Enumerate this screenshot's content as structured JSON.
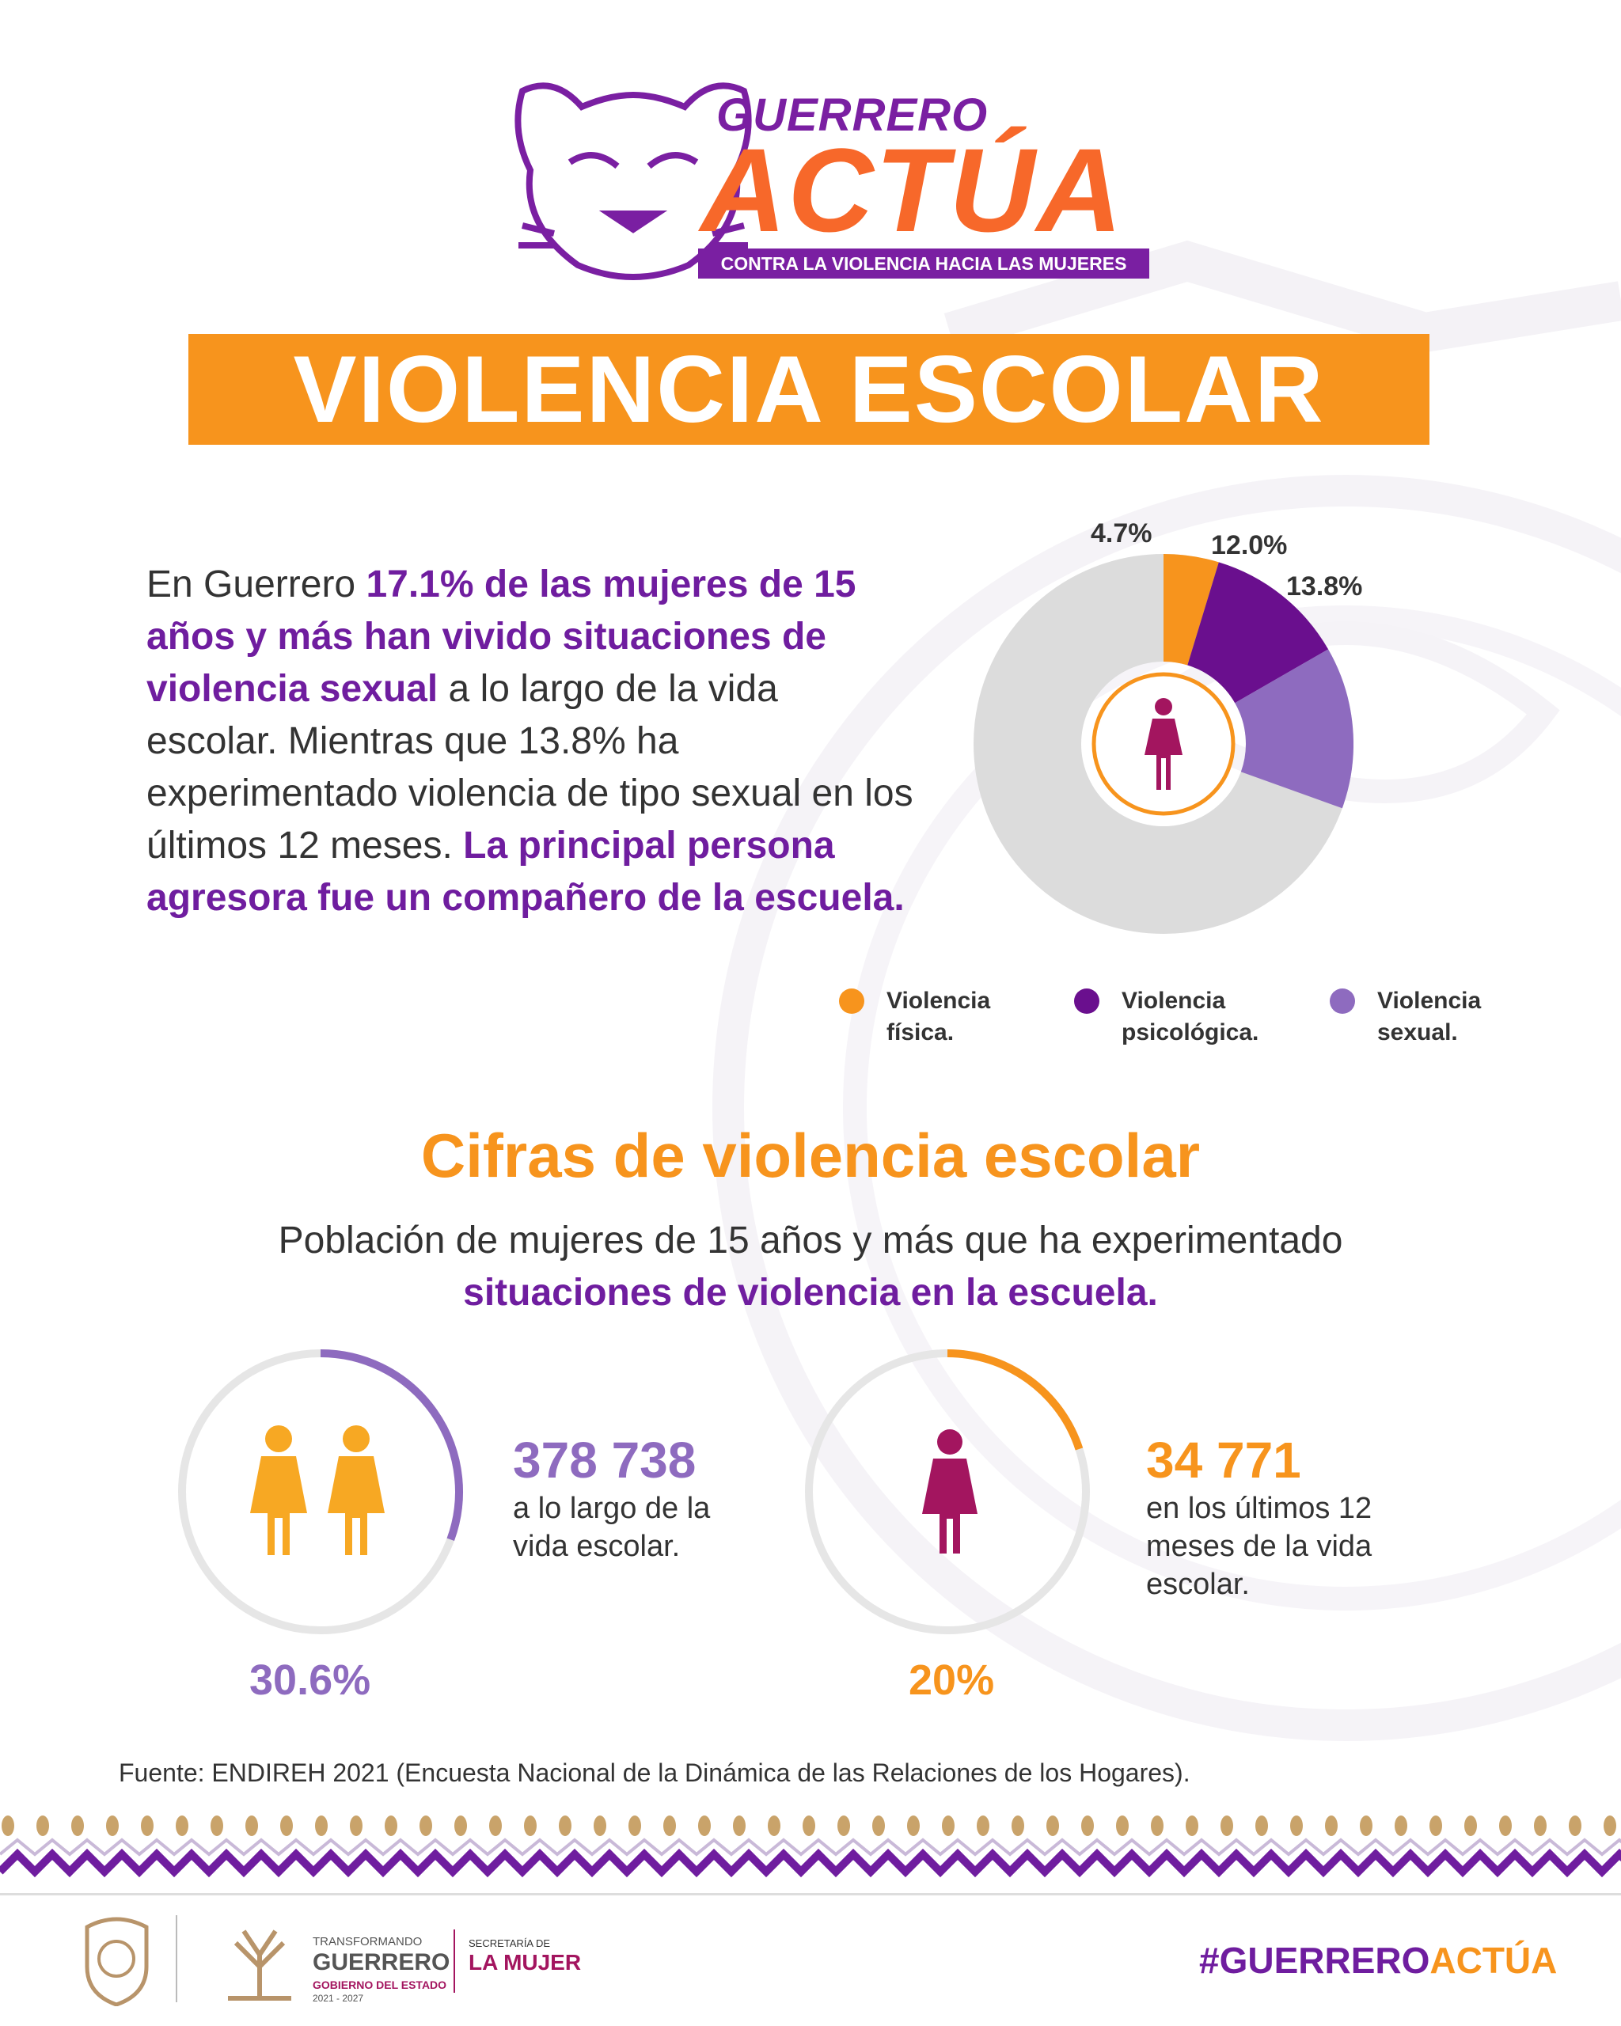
{
  "header": {
    "brand_top": "GUERRERO",
    "brand_main": "ACTÚA",
    "brand_sub": "CONTRA LA VIOLENCIA HACIA LAS MUJERES"
  },
  "title": "VIOLENCIA ESCOLAR",
  "intro": {
    "p1": "En Guerrero ",
    "p2": "17.1% de las mujeres de 15 años y más han vivido situaciones de violencia sexual",
    "p3": " a lo largo de la vida escolar. Mientras que 13.8% ha experimentado violencia de tipo sexual en los últimos 12 meses. ",
    "p4": "La principal persona agresora fue un compañero de la escuela."
  },
  "chart_data": [
    {
      "type": "pie",
      "slices": [
        {
          "label": "Violencia física.",
          "value": 4.7,
          "display": "4.7%",
          "color": "#f7941d"
        },
        {
          "label": "Violencia psicológica.",
          "value": 12.0,
          "display": "12.0%",
          "color": "#6a0f8e"
        },
        {
          "label": "Violencia sexual.",
          "value": 13.8,
          "display": "13.8%",
          "color": "#8e6bbf"
        }
      ],
      "remainder_color": "#dcdcdc",
      "center_icon": "woman-icon"
    },
    {
      "type": "pie",
      "value": 30.6,
      "display": "30.6%",
      "count": "378 738",
      "description": "a lo largo de la vida escolar.",
      "color": "#8e6bbf",
      "icon": "two-women-icon"
    },
    {
      "type": "pie",
      "value": 20,
      "display": "20%",
      "count": "34 771",
      "description": "en los últimos 12 meses de la vida escolar.",
      "color": "#f7941d",
      "icon": "woman-icon"
    }
  ],
  "legend": {
    "fisica": [
      "Violencia",
      "física."
    ],
    "psicologica": [
      "Violencia",
      "psicológica."
    ],
    "sexual": [
      "Violencia",
      "sexual."
    ]
  },
  "section": {
    "title": "Cifras de violencia escolar",
    "sub1": "Población de mujeres de 15 años y más que ha experimentado",
    "sub2": "situaciones de violencia en la escuela."
  },
  "stats": {
    "left": {
      "count": "378 738",
      "desc": [
        "a lo largo de la",
        "vida escolar."
      ],
      "pct": "30.6%"
    },
    "right": {
      "count": "34 771",
      "desc": [
        "en los últimos 12",
        "meses de la vida",
        "escolar."
      ],
      "pct": "20%"
    }
  },
  "source": "Fuente: ENDIREH 2021 (Encuesta Nacional de la Dinámica de las Relaciones de los Hogares).",
  "footer": {
    "gov_top": "TRANSFORMANDO",
    "gov_main": "GUERRERO",
    "gov_sub": "GOBIERNO DEL ESTADO",
    "gov_years": "2021 - 2027",
    "sec_top": "SECRETARÍA DE",
    "sec_main": "LA MUJER",
    "hashtag_a": "#GUERRERO",
    "hashtag_b": "ACTÚA"
  },
  "colors": {
    "orange": "#f7941d",
    "purple": "#6f1d9f",
    "lavender": "#8e6bbf",
    "magenta": "#a3155f",
    "track": "#e6e6e6"
  }
}
